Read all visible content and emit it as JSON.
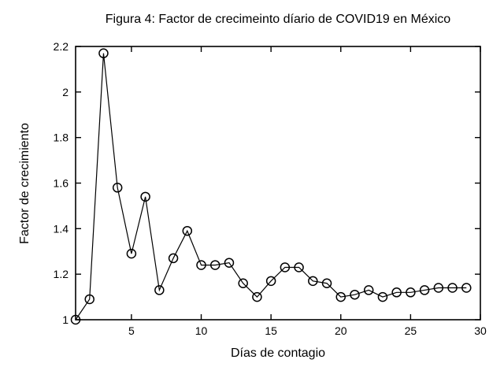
{
  "figure": {
    "background_color": "#ffffff",
    "foreground_color": "#000000"
  },
  "chart_data": {
    "type": "line",
    "title": "Figura 4: Factor de crecimeinto díario de COVID19 en México",
    "xlabel": "Días de contagio",
    "ylabel": "Factor de crecimiento",
    "x": [
      1,
      2,
      3,
      4,
      5,
      6,
      7,
      8,
      9,
      10,
      11,
      12,
      13,
      14,
      15,
      16,
      17,
      18,
      19,
      20,
      21,
      22,
      23,
      24,
      25,
      26,
      27,
      28,
      29
    ],
    "values": [
      1.0,
      1.09,
      2.17,
      1.58,
      1.29,
      1.54,
      1.13,
      1.27,
      1.39,
      1.24,
      1.24,
      1.25,
      1.16,
      1.1,
      1.17,
      1.23,
      1.23,
      1.17,
      1.16,
      1.1,
      1.11,
      1.13,
      1.1,
      1.12,
      1.12,
      1.13,
      1.14,
      1.14,
      1.14
    ],
    "xlim": [
      1,
      30
    ],
    "ylim": [
      1.0,
      2.2
    ],
    "xticks": [
      5,
      10,
      15,
      20,
      25,
      30
    ],
    "xtick_labels": [
      "5",
      "10",
      "15",
      "20",
      "25",
      "30"
    ],
    "yticks": [
      1.0,
      1.2,
      1.4,
      1.6,
      1.8,
      2.0,
      2.2
    ],
    "ytick_labels": [
      "1",
      "1.2",
      "1.4",
      "1.6",
      "1.8",
      "2",
      "2.2"
    ],
    "marker": "open-circle",
    "line_color": "#000000",
    "marker_color": "#000000",
    "grid": false,
    "legend": null,
    "tick_style": "inward-box"
  }
}
